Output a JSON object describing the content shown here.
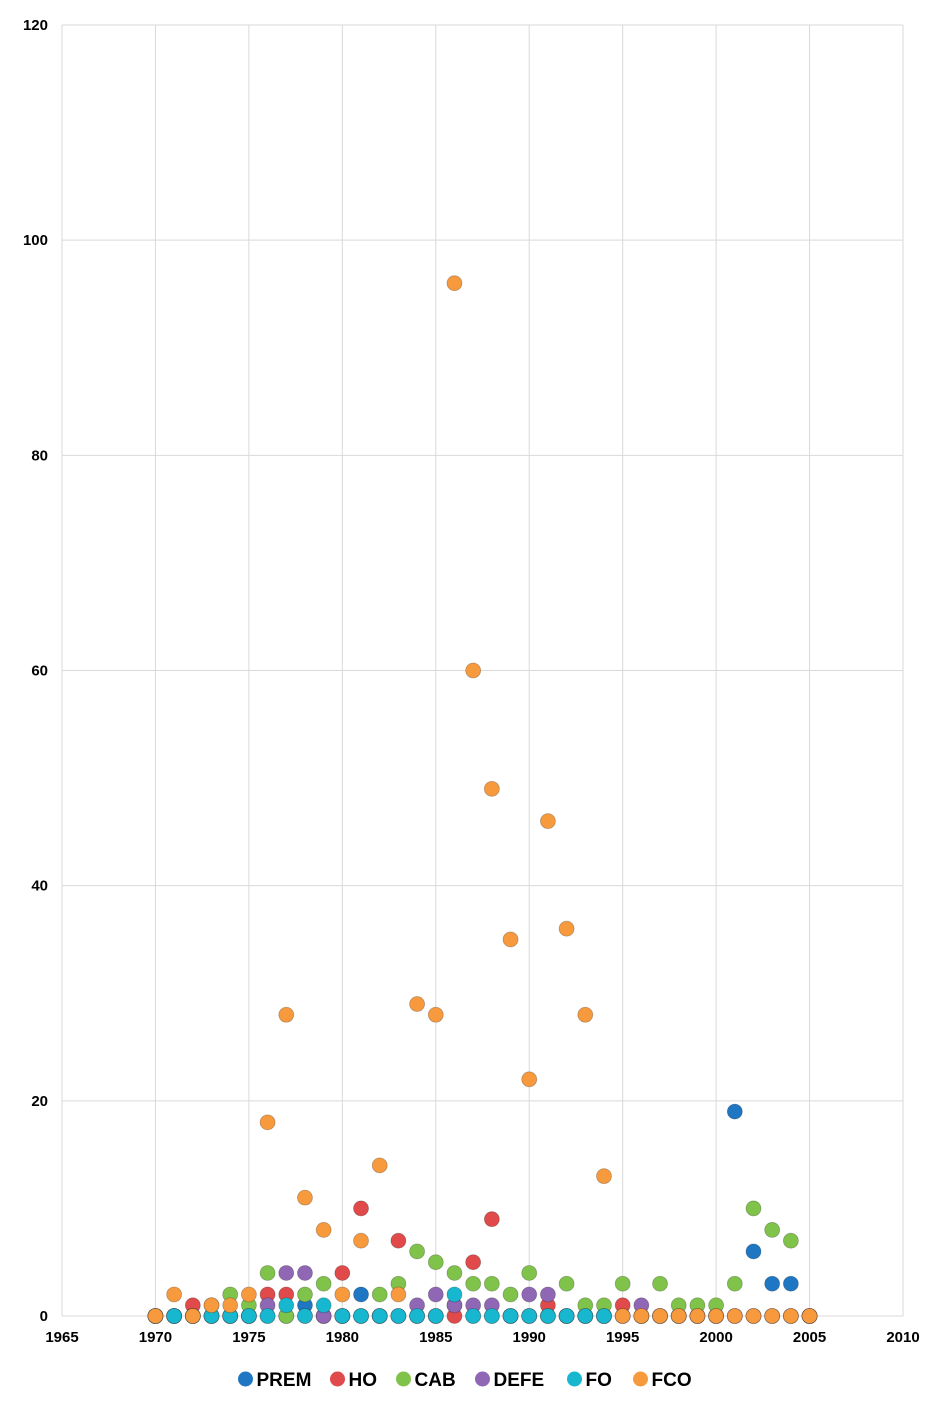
{
  "chart_data": {
    "type": "scatter",
    "title": "",
    "xlabel": "",
    "ylabel": "",
    "xlim": [
      1965,
      2010
    ],
    "ylim": [
      0,
      120
    ],
    "x_ticks": [
      1965,
      1970,
      1975,
      1980,
      1985,
      1990,
      1995,
      2000,
      2005,
      2010
    ],
    "y_ticks": [
      0,
      20,
      40,
      60,
      80,
      100,
      120
    ],
    "grid": true,
    "legend_position": "bottom",
    "series": [
      {
        "name": "PREM",
        "color": "#1f77c4",
        "points": [
          [
            1970,
            0
          ],
          [
            1971,
            0
          ],
          [
            1972,
            0
          ],
          [
            1973,
            0
          ],
          [
            1974,
            0
          ],
          [
            1975,
            0
          ],
          [
            1976,
            0
          ],
          [
            1977,
            0
          ],
          [
            1978,
            1
          ],
          [
            1979,
            0
          ],
          [
            1980,
            0
          ],
          [
            1981,
            2
          ],
          [
            1982,
            0
          ],
          [
            1983,
            0
          ],
          [
            1984,
            0
          ],
          [
            1985,
            0
          ],
          [
            1986,
            1
          ],
          [
            1987,
            0
          ],
          [
            1988,
            0
          ],
          [
            1989,
            0
          ],
          [
            1990,
            0
          ],
          [
            1991,
            0
          ],
          [
            1992,
            0
          ],
          [
            1993,
            0
          ],
          [
            1994,
            0
          ],
          [
            1995,
            0
          ],
          [
            1996,
            0
          ],
          [
            1997,
            0
          ],
          [
            1998,
            0
          ],
          [
            1999,
            0
          ],
          [
            2000,
            0
          ],
          [
            2001,
            19
          ],
          [
            2002,
            6
          ],
          [
            2003,
            3
          ],
          [
            2004,
            3
          ],
          [
            2005,
            0
          ]
        ]
      },
      {
        "name": "HO",
        "color": "#e04a4a",
        "points": [
          [
            1970,
            0
          ],
          [
            1971,
            0
          ],
          [
            1972,
            1
          ],
          [
            1973,
            1
          ],
          [
            1974,
            0
          ],
          [
            1975,
            0
          ],
          [
            1976,
            2
          ],
          [
            1977,
            2
          ],
          [
            1978,
            0
          ],
          [
            1979,
            0
          ],
          [
            1980,
            4
          ],
          [
            1981,
            10
          ],
          [
            1982,
            0
          ],
          [
            1983,
            7
          ],
          [
            1984,
            0
          ],
          [
            1985,
            0
          ],
          [
            1986,
            0
          ],
          [
            1987,
            5
          ],
          [
            1988,
            9
          ],
          [
            1989,
            0
          ],
          [
            1990,
            0
          ],
          [
            1991,
            1
          ],
          [
            1992,
            0
          ],
          [
            1993,
            0
          ],
          [
            1994,
            0
          ],
          [
            1995,
            1
          ],
          [
            1996,
            0
          ],
          [
            1997,
            0
          ],
          [
            1998,
            0
          ],
          [
            1999,
            0
          ],
          [
            2000,
            0
          ],
          [
            2001,
            0
          ],
          [
            2002,
            0
          ],
          [
            2003,
            0
          ],
          [
            2004,
            0
          ],
          [
            2005,
            0
          ]
        ]
      },
      {
        "name": "CAB",
        "color": "#7fc34a",
        "points": [
          [
            1970,
            0
          ],
          [
            1971,
            0
          ],
          [
            1972,
            0
          ],
          [
            1973,
            0
          ],
          [
            1974,
            2
          ],
          [
            1975,
            1
          ],
          [
            1976,
            4
          ],
          [
            1977,
            0
          ],
          [
            1978,
            2
          ],
          [
            1979,
            3
          ],
          [
            1980,
            0
          ],
          [
            1981,
            0
          ],
          [
            1982,
            2
          ],
          [
            1983,
            3
          ],
          [
            1984,
            6
          ],
          [
            1985,
            5
          ],
          [
            1986,
            4
          ],
          [
            1987,
            3
          ],
          [
            1988,
            3
          ],
          [
            1989,
            2
          ],
          [
            1990,
            4
          ],
          [
            1991,
            0
          ],
          [
            1992,
            3
          ],
          [
            1993,
            1
          ],
          [
            1994,
            1
          ],
          [
            1995,
            3
          ],
          [
            1996,
            0
          ],
          [
            1997,
            3
          ],
          [
            1998,
            1
          ],
          [
            1999,
            1
          ],
          [
            2000,
            1
          ],
          [
            2001,
            3
          ],
          [
            2002,
            10
          ],
          [
            2003,
            8
          ],
          [
            2004,
            7
          ],
          [
            2005,
            0
          ]
        ]
      },
      {
        "name": "DEFE",
        "color": "#9067b5",
        "points": [
          [
            1970,
            0
          ],
          [
            1971,
            0
          ],
          [
            1972,
            0
          ],
          [
            1973,
            0
          ],
          [
            1974,
            0
          ],
          [
            1975,
            0
          ],
          [
            1976,
            1
          ],
          [
            1977,
            4
          ],
          [
            1978,
            4
          ],
          [
            1979,
            0
          ],
          [
            1980,
            0
          ],
          [
            1981,
            0
          ],
          [
            1982,
            0
          ],
          [
            1983,
            0
          ],
          [
            1984,
            1
          ],
          [
            1985,
            2
          ],
          [
            1986,
            1
          ],
          [
            1987,
            1
          ],
          [
            1988,
            1
          ],
          [
            1989,
            0
          ],
          [
            1990,
            2
          ],
          [
            1991,
            2
          ],
          [
            1992,
            0
          ],
          [
            1993,
            0
          ],
          [
            1994,
            0
          ],
          [
            1995,
            0
          ],
          [
            1996,
            1
          ],
          [
            1997,
            0
          ],
          [
            1998,
            0
          ],
          [
            1999,
            0
          ],
          [
            2000,
            0
          ],
          [
            2001,
            0
          ],
          [
            2002,
            0
          ],
          [
            2003,
            0
          ],
          [
            2004,
            0
          ],
          [
            2005,
            0
          ]
        ]
      },
      {
        "name": "FO",
        "color": "#17b8cf",
        "points": [
          [
            1970,
            0
          ],
          [
            1971,
            0
          ],
          [
            1972,
            0
          ],
          [
            1973,
            0
          ],
          [
            1974,
            0
          ],
          [
            1975,
            0
          ],
          [
            1976,
            0
          ],
          [
            1977,
            1
          ],
          [
            1978,
            0
          ],
          [
            1979,
            1
          ],
          [
            1980,
            0
          ],
          [
            1981,
            0
          ],
          [
            1982,
            0
          ],
          [
            1983,
            0
          ],
          [
            1984,
            0
          ],
          [
            1985,
            0
          ],
          [
            1986,
            2
          ],
          [
            1987,
            0
          ],
          [
            1988,
            0
          ],
          [
            1989,
            0
          ],
          [
            1990,
            0
          ],
          [
            1991,
            0
          ],
          [
            1992,
            0
          ],
          [
            1993,
            0
          ],
          [
            1994,
            0
          ]
        ]
      },
      {
        "name": "FCO",
        "color": "#f79a3e",
        "points": [
          [
            1970,
            0
          ],
          [
            1971,
            2
          ],
          [
            1972,
            0
          ],
          [
            1973,
            1
          ],
          [
            1974,
            1
          ],
          [
            1975,
            2
          ],
          [
            1976,
            18
          ],
          [
            1977,
            28
          ],
          [
            1978,
            11
          ],
          [
            1979,
            8
          ],
          [
            1980,
            2
          ],
          [
            1981,
            7
          ],
          [
            1982,
            14
          ],
          [
            1983,
            2
          ],
          [
            1984,
            29
          ],
          [
            1985,
            28
          ],
          [
            1986,
            96
          ],
          [
            1987,
            60
          ],
          [
            1988,
            49
          ],
          [
            1989,
            35
          ],
          [
            1990,
            22
          ],
          [
            1991,
            46
          ],
          [
            1992,
            36
          ],
          [
            1993,
            28
          ],
          [
            1994,
            13
          ],
          [
            1995,
            0
          ],
          [
            1996,
            0
          ],
          [
            1997,
            0
          ],
          [
            1998,
            0
          ],
          [
            1999,
            0
          ],
          [
            2000,
            0
          ],
          [
            2001,
            0
          ],
          [
            2002,
            0
          ],
          [
            2003,
            0
          ],
          [
            2004,
            0
          ],
          [
            2005,
            0
          ]
        ]
      }
    ]
  }
}
